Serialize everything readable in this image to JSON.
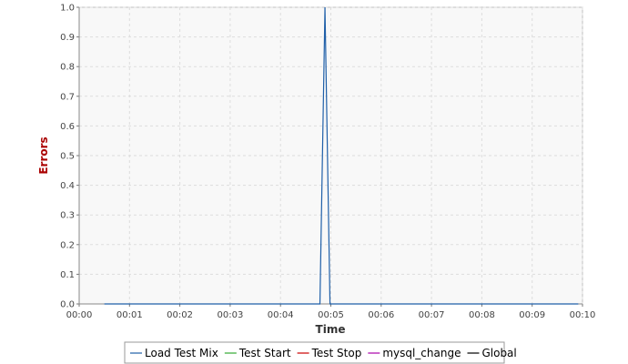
{
  "chart_data": {
    "type": "line",
    "xlabel": "Time",
    "ylabel": "Errors",
    "xlim": [
      "00:00",
      "00:10"
    ],
    "ylim": [
      0,
      1
    ],
    "x_ticks": [
      "00:00",
      "00:01",
      "00:02",
      "00:03",
      "00:04",
      "00:05",
      "00:06",
      "00:07",
      "00:08",
      "00:09",
      "00:10"
    ],
    "y_ticks": [
      "0.0",
      "0.1",
      "0.2",
      "0.3",
      "0.4",
      "0.5",
      "0.6",
      "0.7",
      "0.8",
      "0.9",
      "1.0"
    ],
    "grid": true,
    "legend_position": "bottom",
    "series": [
      {
        "name": "Load Test Mix",
        "color": "#1f5fa8",
        "x": [
          "00:00:30",
          "00:04:47",
          "00:04:53",
          "00:04:59",
          "00:09:55"
        ],
        "values": [
          0,
          0,
          1,
          0,
          0
        ]
      },
      {
        "name": "Test Start",
        "color": "#33aa33",
        "x": [],
        "values": []
      },
      {
        "name": "Test Stop",
        "color": "#cc0000",
        "x": [],
        "values": []
      },
      {
        "name": "mysql_change",
        "color": "#aa00aa",
        "x": [],
        "values": []
      },
      {
        "name": "Global",
        "color": "#000000",
        "x": [],
        "values": []
      }
    ],
    "colors": {
      "plot_background": "#f8f8f8",
      "axis_title_y": "#aa0000",
      "axis_title_x": "#333333",
      "grid": "#dddddd"
    }
  }
}
